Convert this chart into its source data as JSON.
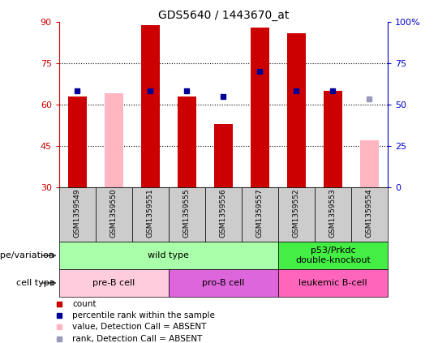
{
  "title": "GDS5640 / 1443670_at",
  "samples": [
    "GSM1359549",
    "GSM1359550",
    "GSM1359551",
    "GSM1359555",
    "GSM1359556",
    "GSM1359557",
    "GSM1359552",
    "GSM1359553",
    "GSM1359554"
  ],
  "red_bars": [
    63,
    null,
    89,
    63,
    53,
    88,
    86,
    65,
    null
  ],
  "pink_bars": [
    null,
    64,
    null,
    null,
    null,
    null,
    null,
    null,
    47
  ],
  "blue_squares": [
    65,
    null,
    65,
    65,
    63,
    72,
    65,
    65,
    null
  ],
  "light_blue_squares": [
    null,
    null,
    null,
    null,
    null,
    null,
    null,
    null,
    62
  ],
  "ylim_left": [
    30,
    90
  ],
  "ylim_right": [
    0,
    100
  ],
  "yticks_left": [
    30,
    45,
    60,
    75,
    90
  ],
  "yticks_right": [
    0,
    25,
    50,
    75,
    100
  ],
  "ytick_labels_right": [
    "0",
    "25",
    "50",
    "75",
    "100%"
  ],
  "genotype_groups": [
    {
      "label": "wild type",
      "span": [
        0,
        6
      ],
      "color": "#AAFFAA"
    },
    {
      "label": "p53/Prkdc\ndouble-knockout",
      "span": [
        6,
        9
      ],
      "color": "#44EE44"
    }
  ],
  "cell_type_groups": [
    {
      "label": "pre-B cell",
      "span": [
        0,
        3
      ],
      "color": "#FFCCDD"
    },
    {
      "label": "pro-B cell",
      "span": [
        3,
        6
      ],
      "color": "#DD66DD"
    },
    {
      "label": "leukemic B-cell",
      "span": [
        6,
        9
      ],
      "color": "#FF66BB"
    }
  ],
  "left_axis_color": "#CC0000",
  "right_axis_color": "#0000CC",
  "red_bar_color": "#CC0000",
  "pink_bar_color": "#FFB6C1",
  "blue_sq_color": "#000099",
  "light_blue_sq_color": "#9999BB",
  "sample_bg_color": "#CCCCCC",
  "bar_width": 0.5
}
